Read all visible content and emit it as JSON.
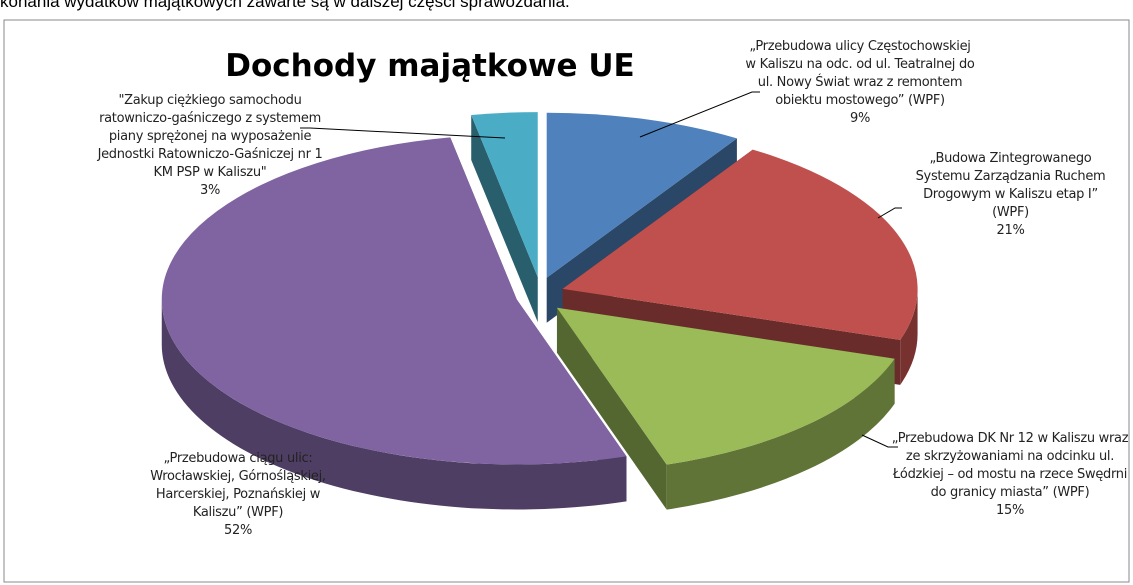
{
  "page_text": "konania wydatków majątkowych zawarte są w dalszej części sprawozdania.",
  "chart_data": {
    "type": "pie",
    "title": "Dochody majątkowe UE",
    "categories": [
      "„Przebudowa ulicy Częstochowskiej w Kaliszu na odc. od ul. Teatralnej do ul. Nowy Świat wraz z remontem obiektu mostowego” (WPF)",
      "„Budowa Zintegrowanego Systemu Zarządzania Ruchem Drogowym w Kaliszu etap I” (WPF)",
      "„Przebudowa DK Nr 12 w Kaliszu wraz ze skrzyżowaniami na odcinku ul. Łódzkiej – od mostu na rzece Swędrni do granicy miasta” (WPF)",
      "„Przebudowa ciągu ulic: Wrocławskiej, Górnośląskiej, Harcerskiej, Poznańskiej w Kaliszu” (WPF)",
      "\"Zakup ciężkiego samochodu ratowniczo-gaśniczego z systemem piany sprężonej na wyposażenie Jednostki Ratowniczo-Gaśniczej nr 1 KM PSP w Kaliszu\""
    ],
    "values": [
      9,
      21,
      15,
      52,
      3
    ],
    "value_labels": [
      "9%",
      "21%",
      "15%",
      "52%",
      "3%"
    ],
    "colors": [
      "#4f81bd",
      "#c0504d",
      "#9bbb59",
      "#8064a2",
      "#4bacc6"
    ]
  }
}
